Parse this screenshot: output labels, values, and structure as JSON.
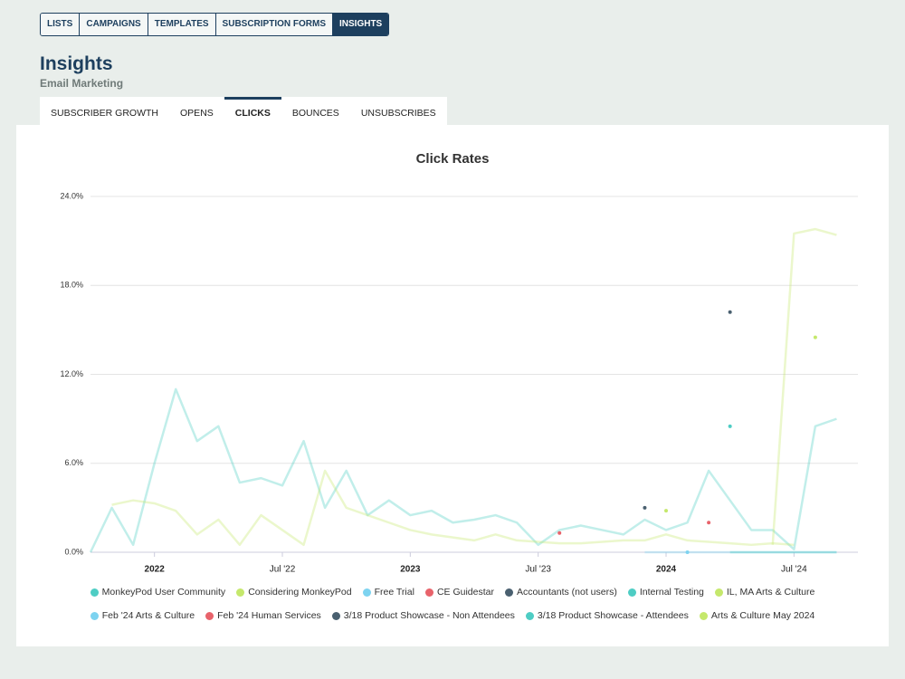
{
  "nav": [
    "LISTS",
    "CAMPAIGNS",
    "TEMPLATES",
    "SUBSCRIPTION FORMS",
    "INSIGHTS"
  ],
  "header": {
    "title": "Insights",
    "subtitle": "Email Marketing"
  },
  "tabs": [
    "SUBSCRIBER GROWTH",
    "OPENS",
    "CLICKS",
    "BOUNCES",
    "UNSUBSCRIBES"
  ],
  "chart_data": {
    "type": "line",
    "title": "Click Rates",
    "x": [
      "2021-10",
      "2021-11",
      "2021-12",
      "2022-01",
      "2022-02",
      "2022-03",
      "2022-04",
      "2022-05",
      "2022-06",
      "2022-07",
      "2022-08",
      "2022-09",
      "2022-10",
      "2022-11",
      "2022-12",
      "2023-01",
      "2023-02",
      "2023-03",
      "2023-04",
      "2023-05",
      "2023-06",
      "2023-07",
      "2023-08",
      "2023-09",
      "2023-10",
      "2023-11",
      "2023-12",
      "2024-01",
      "2024-02",
      "2024-03",
      "2024-04",
      "2024-05",
      "2024-06",
      "2024-07",
      "2024-08",
      "2024-09"
    ],
    "xlim": [
      "2021-10",
      "2024-10"
    ],
    "xticks": [
      {
        "value": "2022-01",
        "label": "2022"
      },
      {
        "value": "2022-07",
        "label": "Jul '22"
      },
      {
        "value": "2023-01",
        "label": "2023"
      },
      {
        "value": "2023-07",
        "label": "Jul '23"
      },
      {
        "value": "2024-01",
        "label": "2024"
      },
      {
        "value": "2024-07",
        "label": "Jul '24"
      }
    ],
    "ylim": [
      0,
      24
    ],
    "yticks": [
      {
        "value": 0,
        "label": "0.0%"
      },
      {
        "value": 6,
        "label": "6.0%"
      },
      {
        "value": 12,
        "label": "12.0%"
      },
      {
        "value": 18,
        "label": "18.0%"
      },
      {
        "value": 24,
        "label": "24.0%"
      }
    ],
    "grid": true,
    "series": [
      {
        "name": "MonkeyPod User Community",
        "color": "#4ecdc4",
        "values": [
          0,
          3,
          0.5,
          6,
          11,
          7.5,
          8.5,
          4.7,
          5,
          4.5,
          7.5,
          3,
          5.5,
          2.5,
          3.5,
          2.5,
          2.8,
          2,
          2.2,
          2.5,
          2,
          0.5,
          1.5,
          1.8,
          1.5,
          1.2,
          2.2,
          1.5,
          2,
          5.5,
          3.5,
          1.5,
          1.5,
          0.2,
          8.5,
          9
        ]
      },
      {
        "name": "Considering MonkeyPod",
        "color": "#c5e86c",
        "values": [
          null,
          3.2,
          3.5,
          3.3,
          2.8,
          1.2,
          2.2,
          0.5,
          2.5,
          1.5,
          0.5,
          5.5,
          3,
          2.5,
          2,
          1.5,
          1.2,
          1,
          0.8,
          1.2,
          0.8,
          0.7,
          0.6,
          0.6,
          0.7,
          0.8,
          0.8,
          1.2,
          0.8,
          0.7,
          0.6,
          0.5,
          0.6,
          0.5,
          null,
          null
        ]
      },
      {
        "name": "Free Trial",
        "color": "#7dd3f0",
        "values": [
          null,
          null,
          null,
          null,
          null,
          null,
          null,
          null,
          null,
          null,
          null,
          null,
          null,
          null,
          null,
          null,
          null,
          null,
          null,
          null,
          null,
          null,
          null,
          null,
          null,
          null,
          0,
          0,
          0,
          0,
          0,
          0,
          0,
          0,
          0,
          0
        ]
      },
      {
        "name": "CE Guidestar",
        "color": "#e8636b",
        "values": [
          null,
          null,
          null,
          null,
          null,
          null,
          null,
          null,
          null,
          null,
          null,
          null,
          null,
          null,
          null,
          null,
          null,
          null,
          null,
          null,
          null,
          null,
          1.3,
          null,
          null,
          null,
          null,
          null,
          null,
          null,
          null,
          null,
          null,
          null,
          null,
          null
        ]
      },
      {
        "name": "Accountants (not users)",
        "color": "#4a6070",
        "values": [
          null,
          null,
          null,
          null,
          null,
          null,
          null,
          null,
          null,
          null,
          null,
          null,
          null,
          null,
          null,
          null,
          null,
          null,
          null,
          null,
          null,
          null,
          null,
          null,
          null,
          null,
          3,
          null,
          null,
          null,
          null,
          null,
          null,
          null,
          null,
          null
        ]
      },
      {
        "name": "Internal Testing",
        "color": "#4ecdc4",
        "values": [
          null,
          null,
          null,
          null,
          null,
          null,
          null,
          null,
          null,
          null,
          null,
          null,
          null,
          null,
          null,
          null,
          null,
          null,
          null,
          null,
          null,
          null,
          null,
          null,
          null,
          null,
          null,
          null,
          null,
          null,
          0,
          0,
          0,
          0,
          0,
          0
        ]
      },
      {
        "name": "IL, MA Arts & Culture",
        "color": "#c5e86c",
        "values": [
          null,
          null,
          null,
          null,
          null,
          null,
          null,
          null,
          null,
          null,
          null,
          null,
          null,
          null,
          null,
          null,
          null,
          null,
          null,
          null,
          null,
          null,
          null,
          null,
          null,
          null,
          null,
          2.8,
          null,
          null,
          null,
          null,
          null,
          null,
          14.5,
          null
        ]
      },
      {
        "name": "Feb '24 Arts & Culture",
        "color": "#7dd3f0",
        "values": [
          null,
          null,
          null,
          null,
          null,
          null,
          null,
          null,
          null,
          null,
          null,
          null,
          null,
          null,
          null,
          null,
          null,
          null,
          null,
          null,
          null,
          null,
          null,
          null,
          null,
          null,
          null,
          null,
          0,
          null,
          null,
          null,
          null,
          null,
          null,
          null
        ]
      },
      {
        "name": "Feb '24 Human Services",
        "color": "#e8636b",
        "values": [
          null,
          null,
          null,
          null,
          null,
          null,
          null,
          null,
          null,
          null,
          null,
          null,
          null,
          null,
          null,
          null,
          null,
          null,
          null,
          null,
          null,
          null,
          null,
          null,
          null,
          null,
          null,
          null,
          null,
          2,
          null,
          null,
          null,
          null,
          null,
          null
        ]
      },
      {
        "name": "3/18 Product Showcase - Non Attendees",
        "color": "#4a6070",
        "values": [
          null,
          null,
          null,
          null,
          null,
          null,
          null,
          null,
          null,
          null,
          null,
          null,
          null,
          null,
          null,
          null,
          null,
          null,
          null,
          null,
          null,
          null,
          null,
          null,
          null,
          null,
          null,
          null,
          null,
          null,
          16.2,
          null,
          null,
          null,
          null,
          null
        ]
      },
      {
        "name": "3/18 Product Showcase - Attendees",
        "color": "#4ecdc4",
        "values": [
          null,
          null,
          null,
          null,
          null,
          null,
          null,
          null,
          null,
          null,
          null,
          null,
          null,
          null,
          null,
          null,
          null,
          null,
          null,
          null,
          null,
          null,
          null,
          null,
          null,
          null,
          null,
          null,
          null,
          null,
          8.5,
          null,
          null,
          null,
          null,
          null
        ]
      },
      {
        "name": "Arts & Culture May 2024",
        "color": "#c5e86c",
        "values": [
          null,
          null,
          null,
          null,
          null,
          null,
          null,
          null,
          null,
          null,
          null,
          null,
          null,
          null,
          null,
          null,
          null,
          null,
          null,
          null,
          null,
          null,
          null,
          null,
          null,
          null,
          null,
          null,
          null,
          null,
          null,
          null,
          0.5,
          21.5,
          21.8,
          21.4
        ]
      }
    ]
  }
}
